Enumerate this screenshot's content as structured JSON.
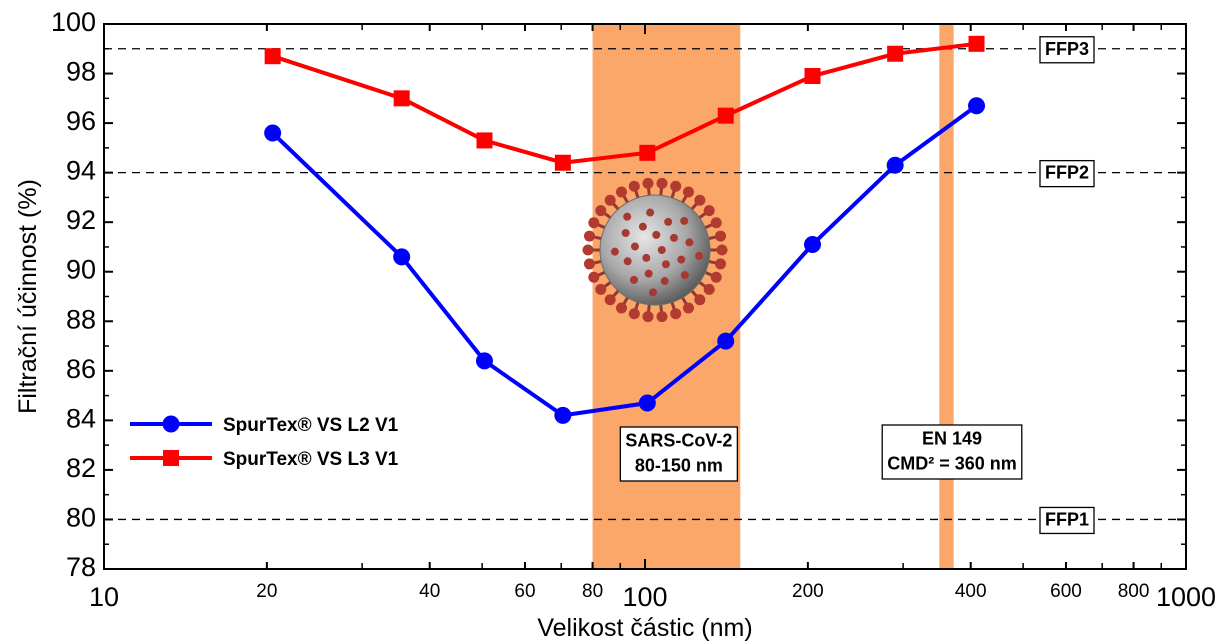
{
  "chart_data": {
    "type": "line",
    "xlabel": "Velikost částic (nm)",
    "ylabel": "Filtrační účinnost (%)",
    "xscale": "log",
    "xlim": [
      10,
      1000
    ],
    "ylim": [
      78,
      100
    ],
    "x_ticks": [
      {
        "value": 10,
        "label": "10",
        "major": true
      },
      {
        "value": 20,
        "label": "20"
      },
      {
        "value": 40,
        "label": "40"
      },
      {
        "value": 60,
        "label": "60"
      },
      {
        "value": 80,
        "label": "80"
      },
      {
        "value": 100,
        "label": "100",
        "major": true
      },
      {
        "value": 200,
        "label": "200"
      },
      {
        "value": 400,
        "label": "400"
      },
      {
        "value": 600,
        "label": "600"
      },
      {
        "value": 800,
        "label": "800"
      },
      {
        "value": 1000,
        "label": "1000",
        "major": true
      }
    ],
    "y_ticks": [
      "78",
      "80",
      "82",
      "84",
      "86",
      "88",
      "90",
      "92",
      "94",
      "96",
      "98",
      "100"
    ],
    "series": [
      {
        "name": "SpurTex® VS L2 V1",
        "color": "#0000ff",
        "marker": "circle",
        "x": [
          20.5,
          35.5,
          50.5,
          70.5,
          101,
          141,
          204,
          290,
          410
        ],
        "y": [
          95.6,
          90.6,
          86.4,
          84.2,
          84.7,
          87.2,
          91.1,
          94.3,
          96.7
        ]
      },
      {
        "name": "SpurTex® VS L3 V1",
        "color": "#ff0000",
        "marker": "square",
        "x": [
          20.5,
          35.5,
          50.5,
          70.5,
          101,
          141,
          204,
          290,
          410
        ],
        "y": [
          98.7,
          97.0,
          95.3,
          94.4,
          94.8,
          96.3,
          97.9,
          98.8,
          99.2
        ]
      }
    ],
    "reference_lines": [
      {
        "y": 99,
        "label": "FFP3"
      },
      {
        "y": 94,
        "label": "FFP2"
      },
      {
        "y": 80,
        "label": "FFP1"
      }
    ],
    "bands": [
      {
        "x_range": [
          80,
          150
        ],
        "color": "#fba76a",
        "label_lines": [
          "SARS-CoV-2",
          "80-150 nm"
        ]
      },
      {
        "x_range": [
          350,
          372
        ],
        "color": "#fba76a",
        "label_lines": [
          "EN 149",
          "CMD² = 360 nm"
        ]
      }
    ],
    "legend_position": "bottom-left",
    "grid": false
  }
}
